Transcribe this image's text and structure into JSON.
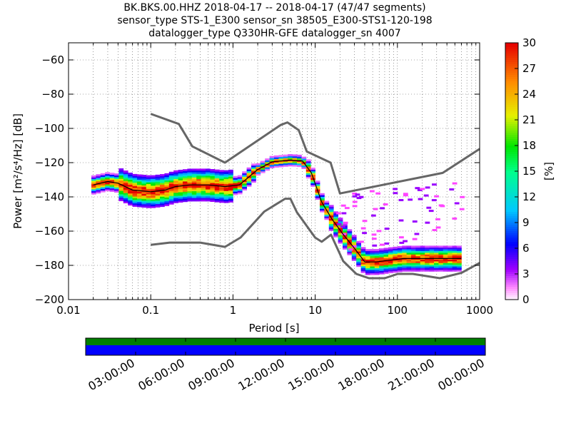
{
  "header": {
    "title_line1": "BK.BKS.00.HHZ   2018-04-17 -- 2018-04-17  (47/47 segments)",
    "title_line2": "sensor_type STS-1_E300 sensor_sn 38505_E300-STS1-120-198",
    "title_line3": "datalogger_type Q330HR-GFE datalogger_sn 4007"
  },
  "chart_data": {
    "type": "heatmap",
    "xlabel": "Period [s]",
    "ylabel": "Power [m²/s⁴/Hz] [dB]",
    "xscale": "log",
    "xlim": [
      0.01,
      1000
    ],
    "ylim": [
      -200,
      -50
    ],
    "xticks": [
      "0.01",
      "0.1",
      "1",
      "10",
      "100",
      "1000"
    ],
    "yticks": [
      "−60",
      "−80",
      "−100",
      "−120",
      "−140",
      "−160",
      "−180",
      "−200"
    ],
    "grid": true,
    "colorbar": {
      "label": "[%]",
      "range": [
        0,
        30
      ],
      "ticks": [
        "0",
        "3",
        "6",
        "9",
        "12",
        "15",
        "18",
        "21",
        "24",
        "27",
        "30"
      ]
    },
    "noise_model_high": {
      "x": [
        0.1,
        0.22,
        0.32,
        0.8,
        3.8,
        4.6,
        6.3,
        7.9,
        15.4,
        20,
        354.8,
        1000
      ],
      "y": [
        -91.5,
        -97.4,
        -110.5,
        -120,
        -98,
        -96.5,
        -101,
        -113.5,
        -120,
        -138,
        -126,
        -112
      ]
    },
    "noise_model_low": {
      "x": [
        0.1,
        0.17,
        0.4,
        0.8,
        1.24,
        2.4,
        4.3,
        5,
        6,
        10,
        12,
        15.6,
        21.9,
        31.6,
        45,
        70,
        101,
        154,
        328,
        600,
        1000
      ],
      "y": [
        -168,
        -166.7,
        -166.7,
        -169.2,
        -163.7,
        -148.6,
        -141.1,
        -141.1,
        -149,
        -163.8,
        -166.2,
        -162.1,
        -177.5,
        -185,
        -187.5,
        -187.5,
        -185,
        -185,
        -187.5,
        -184.4,
        -178.6
      ]
    },
    "median_curve": {
      "x": [
        0.02,
        0.03,
        0.04,
        0.06,
        0.1,
        0.15,
        0.2,
        0.3,
        0.5,
        0.8,
        1.2,
        2,
        3,
        5,
        7,
        9,
        12,
        16,
        22,
        30,
        40,
        55,
        80,
        120,
        200,
        400,
        600
      ],
      "y": [
        -133,
        -131,
        -132,
        -136,
        -137,
        -136,
        -134,
        -133,
        -133,
        -134,
        -133,
        -124,
        -119.5,
        -118.5,
        -119,
        -126,
        -143,
        -153,
        -162,
        -170,
        -178,
        -178,
        -177,
        -176,
        -176,
        -176,
        -176
      ]
    }
  },
  "timeline": {
    "labels": [
      "03:00:00",
      "06:00:00",
      "09:00:00",
      "12:00:00",
      "15:00:00",
      "18:00:00",
      "21:00:00",
      "00:00:00"
    ],
    "bar_colors": {
      "top": "#007f00",
      "bottom": "#0000ff"
    },
    "coverage_fraction": 1.0
  }
}
